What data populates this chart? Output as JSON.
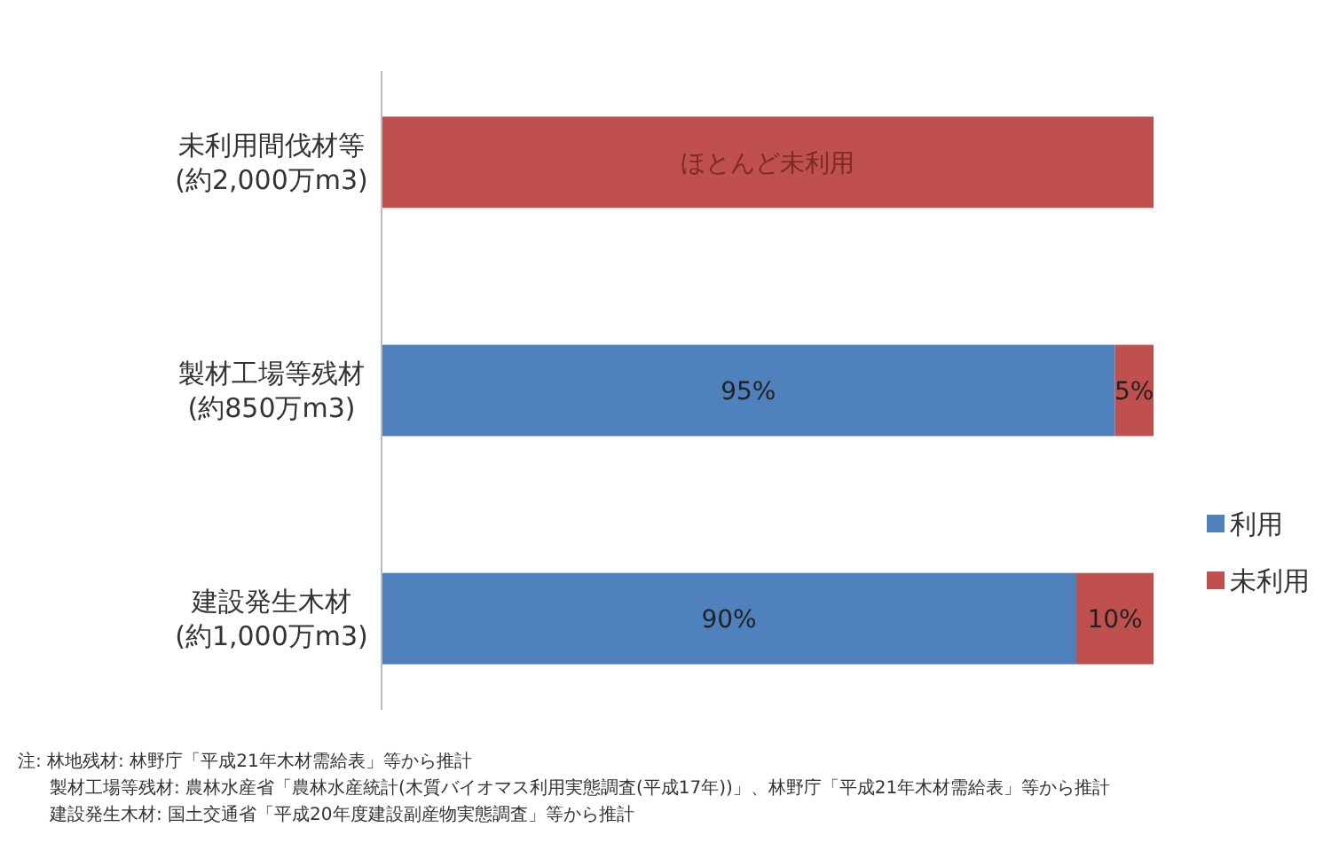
{
  "chart_data": {
    "type": "bar",
    "orientation": "horizontal",
    "stacked": true,
    "categories": [
      "未利用間伐材等\n(約2,000万m3)",
      "製材工場等残材\n(約850万m3)",
      "建設発生木材\n(約1,000万m3)"
    ],
    "series": [
      {
        "name": "利用",
        "color": "#4f81bd",
        "values": [
          null,
          95,
          90
        ],
        "value_labels": [
          null,
          "95%",
          "90%"
        ]
      },
      {
        "name": "未利用",
        "color": "#c0504d",
        "values": [
          100,
          5,
          10
        ],
        "value_labels": [
          "ほとんど未利用",
          "5%",
          "10%"
        ]
      }
    ],
    "legend": "right",
    "annotations": [
      "注: 林地残材: 林野庁「平成21年木材需給表」等から推計",
      "製材工場等残材: 農林水産省「農林水産統計(木質バイオマス利用実態調査(平成17年))」、林野庁「平成21年木材需給表」等から推計",
      "建設発生木材: 国土交通省「平成20年度建設副産物実態調査」等から推計"
    ]
  }
}
